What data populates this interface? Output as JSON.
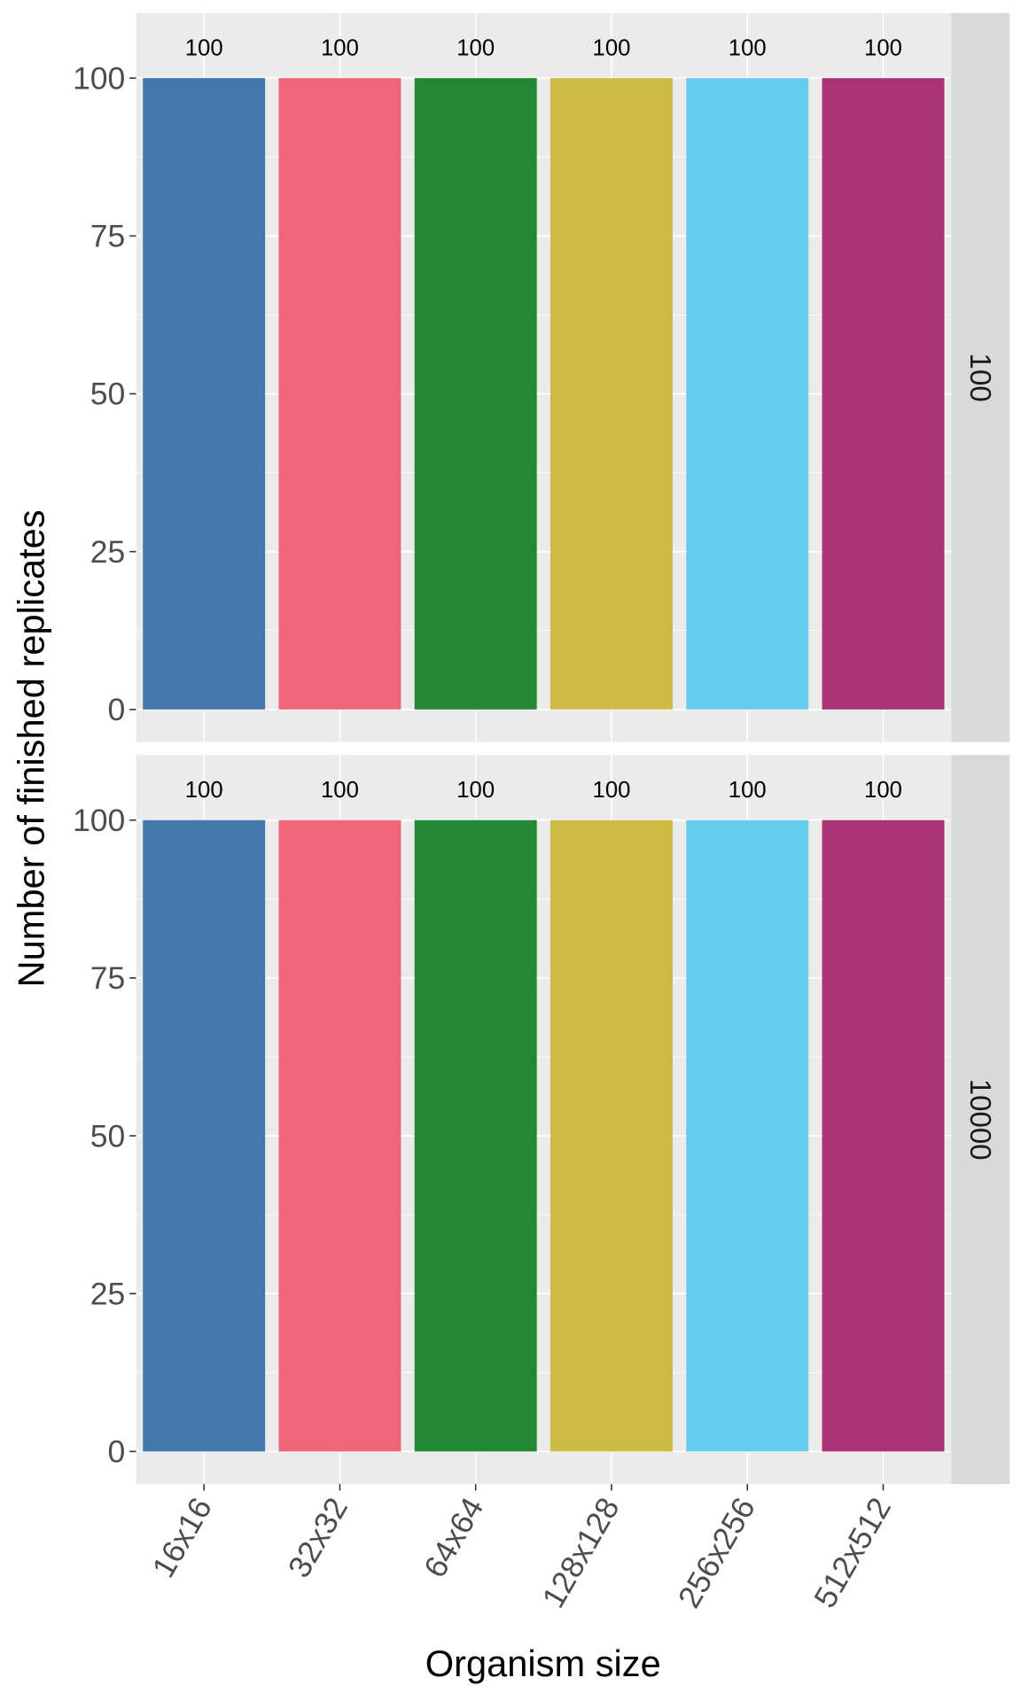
{
  "chart_data": {
    "type": "bar",
    "xlabel": "Organism size",
    "ylabel": "Number of finished replicates",
    "categories": [
      "16x16",
      "32x32",
      "64x64",
      "128x128",
      "256x256",
      "512x512"
    ],
    "colors": [
      "#4477AA",
      "#EE6677",
      "#228833",
      "#CCBB44",
      "#66CCEE",
      "#AA3377"
    ],
    "ylim": [
      0,
      110
    ],
    "yticks": [
      0,
      25,
      50,
      75,
      100
    ],
    "grid": true,
    "facets": [
      {
        "label": "100",
        "values": [
          100,
          100,
          100,
          100,
          100,
          100
        ],
        "data_labels": [
          "100",
          "100",
          "100",
          "100",
          "100",
          "100"
        ]
      },
      {
        "label": "10000",
        "values": [
          100,
          100,
          100,
          100,
          100,
          100
        ],
        "data_labels": [
          "100",
          "100",
          "100",
          "100",
          "100",
          "100"
        ]
      }
    ]
  }
}
